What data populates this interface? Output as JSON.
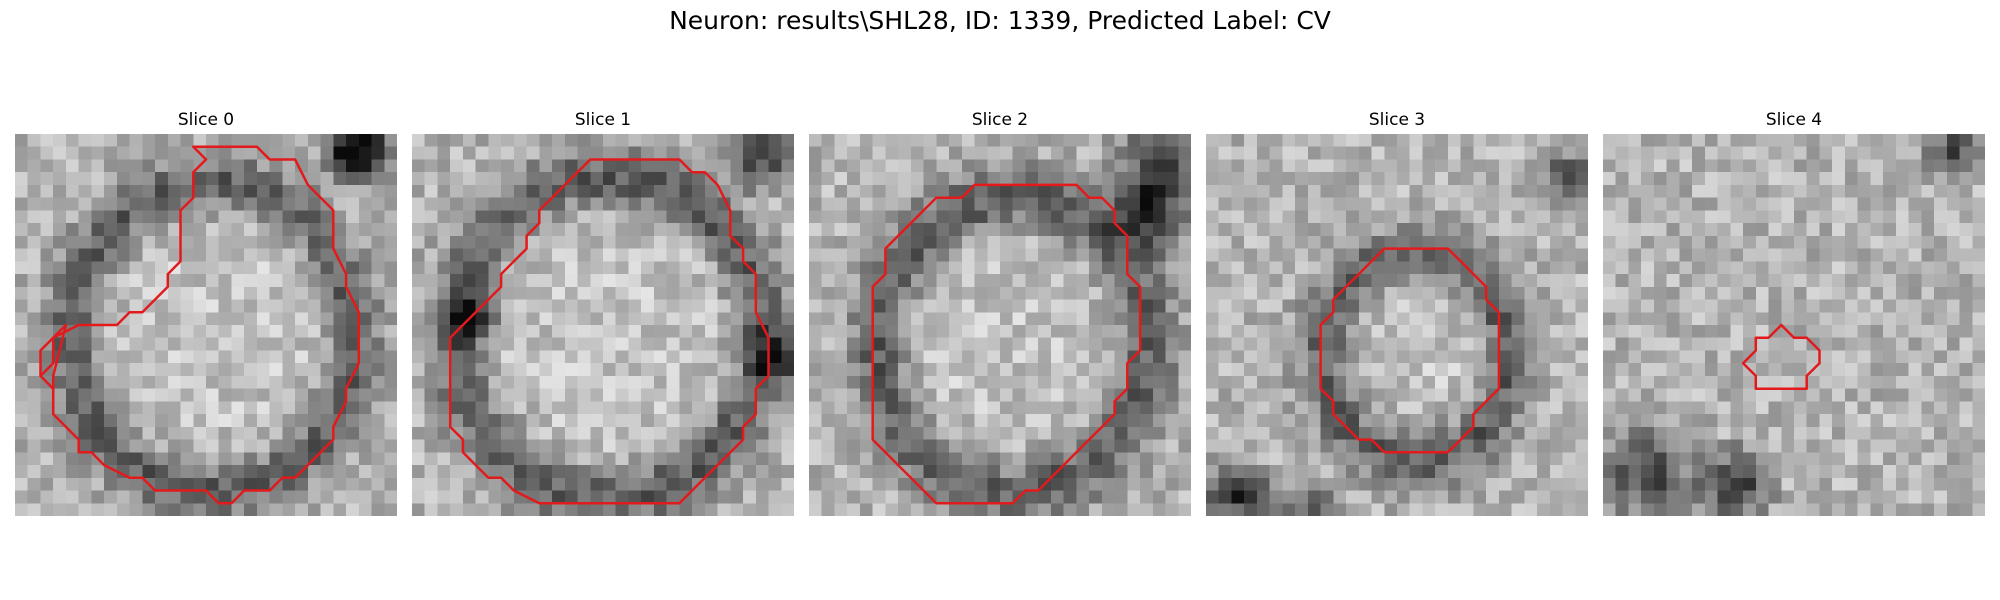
{
  "figure": {
    "title": "Neuron: results\\SHL28, ID: 1339, Predicted Label: CV"
  },
  "contour_color": "#e31a1c",
  "image_grid": {
    "rows": 30,
    "cols": 30
  },
  "slices": [
    {
      "label": "Slice 0",
      "contour": [
        [
          14,
          1
        ],
        [
          19,
          1
        ],
        [
          20,
          2
        ],
        [
          22,
          2
        ],
        [
          23,
          4
        ],
        [
          25,
          6
        ],
        [
          25,
          8
        ],
        [
          25,
          9
        ],
        [
          26,
          11
        ],
        [
          26,
          12
        ],
        [
          27,
          14
        ],
        [
          27,
          18
        ],
        [
          26,
          20
        ],
        [
          26,
          21
        ],
        [
          25,
          23
        ],
        [
          25,
          24
        ],
        [
          23,
          26
        ],
        [
          22,
          27
        ],
        [
          21,
          27
        ],
        [
          20,
          28
        ],
        [
          18,
          28
        ],
        [
          17,
          29
        ],
        [
          16,
          29
        ],
        [
          15,
          28
        ],
        [
          11,
          28
        ],
        [
          10,
          27
        ],
        [
          9,
          27
        ],
        [
          7,
          26
        ],
        [
          6,
          25
        ],
        [
          5,
          25
        ],
        [
          5,
          24
        ],
        [
          4,
          23
        ],
        [
          3,
          22
        ],
        [
          3,
          21
        ],
        [
          3,
          20
        ],
        [
          2,
          19
        ],
        [
          3,
          18
        ],
        [
          3,
          17
        ],
        [
          3,
          16
        ],
        [
          4,
          15
        ],
        [
          3,
          19
        ],
        [
          3,
          20
        ],
        [
          2,
          19
        ],
        [
          2,
          17
        ],
        [
          3,
          16
        ],
        [
          5,
          15
        ],
        [
          8,
          15
        ],
        [
          9,
          14
        ],
        [
          10,
          14
        ],
        [
          12,
          12
        ],
        [
          12,
          11
        ],
        [
          13,
          10
        ],
        [
          13,
          6
        ],
        [
          14,
          5
        ],
        [
          14,
          3
        ],
        [
          15,
          2
        ]
      ]
    },
    {
      "label": "Slice 1",
      "contour": [
        [
          14,
          2
        ],
        [
          21,
          2
        ],
        [
          22,
          3
        ],
        [
          23,
          3
        ],
        [
          24,
          4
        ],
        [
          25,
          6
        ],
        [
          25,
          8
        ],
        [
          26,
          9
        ],
        [
          26,
          10
        ],
        [
          27,
          11
        ],
        [
          27,
          14
        ],
        [
          28,
          16
        ],
        [
          28,
          19
        ],
        [
          27,
          20
        ],
        [
          27,
          22
        ],
        [
          26,
          23
        ],
        [
          26,
          24
        ],
        [
          24,
          26
        ],
        [
          23,
          27
        ],
        [
          22,
          28
        ],
        [
          21,
          29
        ],
        [
          19,
          29
        ],
        [
          18,
          29
        ],
        [
          10,
          29
        ],
        [
          8,
          28
        ],
        [
          7,
          27
        ],
        [
          6,
          27
        ],
        [
          5,
          26
        ],
        [
          4,
          25
        ],
        [
          4,
          24
        ],
        [
          3,
          23
        ],
        [
          3,
          22
        ],
        [
          3,
          18
        ],
        [
          3,
          16
        ],
        [
          4,
          15
        ],
        [
          5,
          14
        ],
        [
          6,
          13
        ],
        [
          7,
          12
        ],
        [
          7,
          11
        ],
        [
          8,
          10
        ],
        [
          9,
          9
        ],
        [
          9,
          8
        ],
        [
          10,
          7
        ],
        [
          10,
          6
        ],
        [
          11,
          5
        ],
        [
          12,
          4
        ],
        [
          13,
          3
        ]
      ]
    },
    {
      "label": "Slice 2",
      "contour": [
        [
          13,
          4
        ],
        [
          21,
          4
        ],
        [
          22,
          5
        ],
        [
          23,
          5
        ],
        [
          24,
          6
        ],
        [
          24,
          7
        ],
        [
          25,
          8
        ],
        [
          25,
          11
        ],
        [
          26,
          12
        ],
        [
          26,
          17
        ],
        [
          25,
          18
        ],
        [
          25,
          20
        ],
        [
          24,
          21
        ],
        [
          24,
          22
        ],
        [
          23,
          23
        ],
        [
          22,
          24
        ],
        [
          21,
          25
        ],
        [
          20,
          26
        ],
        [
          19,
          27
        ],
        [
          18,
          28
        ],
        [
          17,
          28
        ],
        [
          16,
          29
        ],
        [
          15,
          29
        ],
        [
          12,
          29
        ],
        [
          10,
          29
        ],
        [
          9,
          28
        ],
        [
          8,
          27
        ],
        [
          7,
          26
        ],
        [
          6,
          25
        ],
        [
          5,
          24
        ],
        [
          5,
          23
        ],
        [
          5,
          12
        ],
        [
          6,
          11
        ],
        [
          6,
          9
        ],
        [
          7,
          8
        ],
        [
          8,
          7
        ],
        [
          9,
          6
        ],
        [
          10,
          5
        ],
        [
          12,
          5
        ]
      ]
    },
    {
      "label": "Slice 3",
      "contour": [
        [
          14,
          9
        ],
        [
          19,
          9
        ],
        [
          20,
          10
        ],
        [
          21,
          11
        ],
        [
          22,
          12
        ],
        [
          22,
          13
        ],
        [
          23,
          14
        ],
        [
          23,
          20
        ],
        [
          22,
          21
        ],
        [
          21,
          22
        ],
        [
          21,
          23
        ],
        [
          20,
          24
        ],
        [
          19,
          25
        ],
        [
          18,
          25
        ],
        [
          17,
          25
        ],
        [
          14,
          25
        ],
        [
          13,
          24
        ],
        [
          12,
          24
        ],
        [
          11,
          23
        ],
        [
          10,
          22
        ],
        [
          10,
          21
        ],
        [
          9,
          20
        ],
        [
          9,
          19
        ],
        [
          9,
          15
        ],
        [
          10,
          14
        ],
        [
          10,
          13
        ],
        [
          11,
          12
        ],
        [
          12,
          11
        ],
        [
          13,
          10
        ]
      ]
    },
    {
      "label": "Slice 4",
      "contour": [
        [
          13,
          16
        ],
        [
          14,
          15
        ],
        [
          15,
          16
        ],
        [
          16,
          16
        ],
        [
          17,
          17
        ],
        [
          17,
          18
        ],
        [
          16,
          19
        ],
        [
          16,
          20
        ],
        [
          12,
          20
        ],
        [
          12,
          19
        ],
        [
          11,
          18
        ],
        [
          12,
          17
        ],
        [
          12,
          16
        ]
      ]
    }
  ]
}
